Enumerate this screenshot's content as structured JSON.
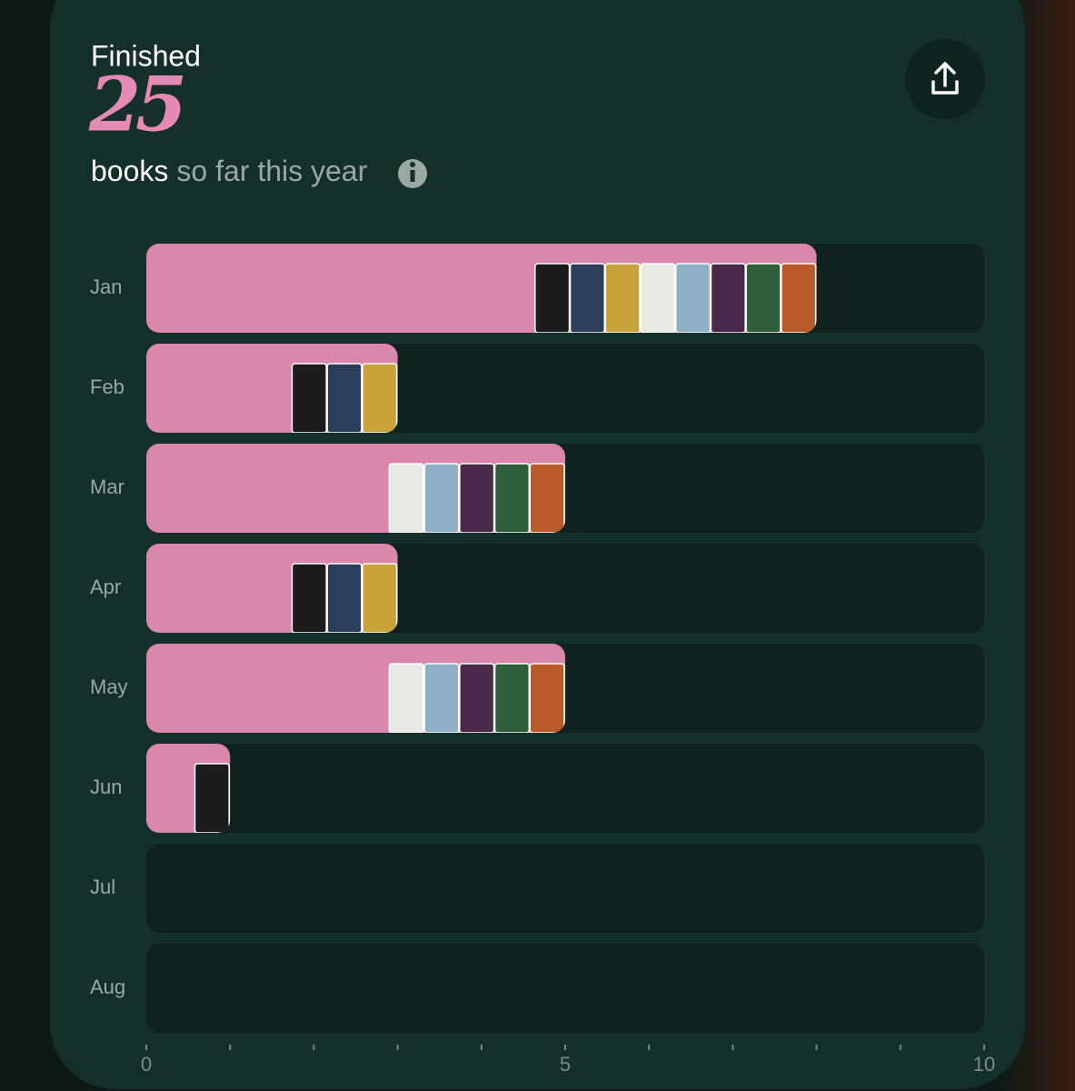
{
  "header": {
    "label": "Finished",
    "count": 25,
    "unit": "books",
    "suffix": "so far this year"
  },
  "chart_data": {
    "type": "bar",
    "orientation": "horizontal",
    "categories": [
      "Jan",
      "Feb",
      "Mar",
      "Apr",
      "May",
      "Jun",
      "Jul",
      "Aug"
    ],
    "values": [
      8,
      3,
      5,
      3,
      5,
      1,
      0,
      0
    ],
    "color": "#d987aa",
    "xlim": [
      0,
      10
    ],
    "xticks": [
      0,
      5,
      10
    ],
    "xminor_ticks": [
      1,
      2,
      3,
      4,
      6,
      7,
      8,
      9
    ]
  }
}
